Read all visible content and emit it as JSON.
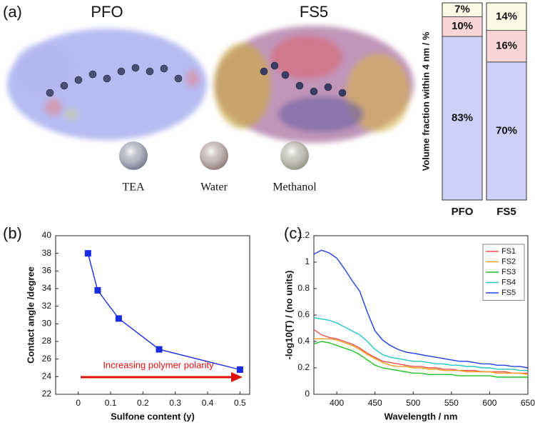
{
  "panel_labels": [
    "(a)",
    "(b)",
    "(c)"
  ],
  "molecule_labels": [
    "PFO",
    "FS5"
  ],
  "chart_data": [
    {
      "type": "bar",
      "stacked": true,
      "ylabel": "Volume fraction within 4 nm / %",
      "categories": [
        "PFO",
        "FS5"
      ],
      "ylim": [
        0,
        100
      ],
      "series": [
        {
          "name": "TEA",
          "color": "#cfd0f7",
          "values": [
            83,
            70
          ],
          "value_labels": [
            "83%",
            "70%"
          ]
        },
        {
          "name": "Water",
          "color": "#f9d5d5",
          "values": [
            10,
            16
          ],
          "value_labels": [
            "10%",
            "16%"
          ]
        },
        {
          "name": "Methanol",
          "color": "#fcfbe6",
          "values": [
            7,
            14
          ],
          "value_labels": [
            "7%",
            "14%"
          ]
        }
      ]
    },
    {
      "type": "line",
      "markers": true,
      "xlabel": "Sulfone content (y)",
      "ylabel": "Contact angle /degree",
      "annotation": "Increasing polymer polarity",
      "x": [
        0.03,
        0.06,
        0.125,
        0.25,
        0.5
      ],
      "series": [
        {
          "color": "#1a2be0",
          "values": [
            38,
            33.8,
            30.6,
            27.1,
            24.8
          ]
        }
      ],
      "xlim": [
        -0.07,
        0.53
      ],
      "xticks": [
        0,
        0.1,
        0.2,
        0.3,
        0.4,
        0.5
      ],
      "ylim": [
        22,
        40
      ],
      "yticks": [
        22,
        24,
        26,
        28,
        30,
        32,
        34,
        36,
        38,
        40
      ]
    },
    {
      "type": "line",
      "legend": "upper right",
      "xlabel": "Wavelength / nm",
      "ylabel": "-log10(T) / (no units)",
      "x": [
        370,
        380,
        390,
        400,
        410,
        420,
        430,
        440,
        450,
        460,
        470,
        480,
        490,
        500,
        510,
        520,
        530,
        540,
        550,
        560,
        570,
        580,
        590,
        600,
        610,
        620,
        630,
        640,
        650
      ],
      "series": [
        {
          "name": "FS1",
          "color": "#e8504a",
          "values": [
            0.49,
            0.45,
            0.43,
            0.42,
            0.4,
            0.38,
            0.35,
            0.31,
            0.28,
            0.25,
            0.24,
            0.23,
            0.22,
            0.21,
            0.21,
            0.2,
            0.2,
            0.19,
            0.19,
            0.18,
            0.18,
            0.18,
            0.17,
            0.17,
            0.17,
            0.17,
            0.16,
            0.16,
            0.16
          ]
        },
        {
          "name": "FS2",
          "color": "#f0a020",
          "values": [
            0.42,
            0.42,
            0.42,
            0.41,
            0.39,
            0.37,
            0.34,
            0.3,
            0.27,
            0.24,
            0.22,
            0.21,
            0.21,
            0.2,
            0.2,
            0.19,
            0.19,
            0.18,
            0.18,
            0.18,
            0.17,
            0.17,
            0.17,
            0.17,
            0.16,
            0.16,
            0.16,
            0.16,
            0.15
          ]
        },
        {
          "name": "FS3",
          "color": "#22c022",
          "values": [
            0.38,
            0.4,
            0.39,
            0.37,
            0.35,
            0.33,
            0.3,
            0.26,
            0.22,
            0.2,
            0.19,
            0.18,
            0.17,
            0.16,
            0.16,
            0.15,
            0.15,
            0.15,
            0.15,
            0.14,
            0.14,
            0.14,
            0.14,
            0.14,
            0.13,
            0.13,
            0.13,
            0.13,
            0.13
          ]
        },
        {
          "name": "FS4",
          "color": "#22c4c4",
          "values": [
            0.58,
            0.57,
            0.56,
            0.54,
            0.51,
            0.48,
            0.45,
            0.4,
            0.34,
            0.3,
            0.28,
            0.27,
            0.26,
            0.25,
            0.25,
            0.24,
            0.23,
            0.23,
            0.22,
            0.22,
            0.21,
            0.21,
            0.2,
            0.2,
            0.19,
            0.19,
            0.19,
            0.18,
            0.18
          ]
        },
        {
          "name": "FS5",
          "color": "#2040e0",
          "values": [
            1.06,
            1.09,
            1.07,
            1.03,
            0.95,
            0.86,
            0.78,
            0.62,
            0.48,
            0.41,
            0.37,
            0.34,
            0.32,
            0.31,
            0.3,
            0.29,
            0.28,
            0.27,
            0.26,
            0.25,
            0.25,
            0.24,
            0.23,
            0.23,
            0.22,
            0.22,
            0.21,
            0.21,
            0.2
          ]
        }
      ],
      "xlim": [
        370,
        650
      ],
      "xticks": [
        400,
        450,
        500,
        550,
        600,
        650
      ],
      "ylim": [
        0,
        1.2
      ],
      "yticks": [
        0,
        0.2,
        0.4,
        0.6,
        0.8,
        1.0,
        1.2
      ]
    }
  ]
}
